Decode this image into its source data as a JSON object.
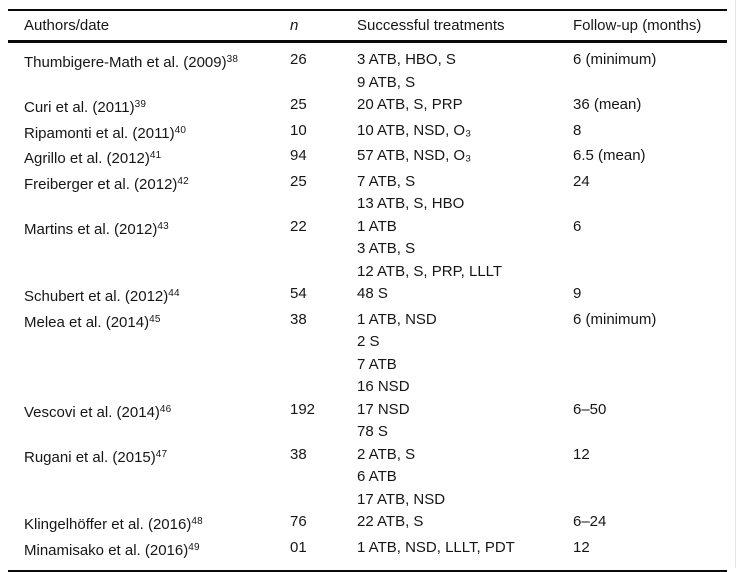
{
  "table": {
    "header": {
      "authors": "Authors/date",
      "n": "n",
      "treatments": "Successful treatments",
      "followup": "Follow-up (months)"
    },
    "rows": [
      {
        "authors": "Thumbigere-Math et al. (2009)",
        "ref": "38",
        "n": "26",
        "treatments": [
          "3 ATB, HBO, S",
          "9 ATB, S"
        ],
        "followup": "6 (minimum)"
      },
      {
        "authors": "Curi et al. (2011)",
        "ref": "39",
        "n": "25",
        "treatments": [
          "20 ATB, S, PRP"
        ],
        "followup": "36 (mean)"
      },
      {
        "authors": "Ripamonti et al. (2011)",
        "ref": "40",
        "n": "10",
        "treatments": [
          "10 ATB, NSD, O₃"
        ],
        "followup": "8"
      },
      {
        "authors": "Agrillo et al. (2012)",
        "ref": "41",
        "n": "94",
        "treatments": [
          "57 ATB, NSD, O₃"
        ],
        "followup": "6.5 (mean)"
      },
      {
        "authors": "Freiberger et al. (2012)",
        "ref": "42",
        "n": "25",
        "treatments": [
          "7 ATB, S",
          "13 ATB, S, HBO"
        ],
        "followup": "24"
      },
      {
        "authors": "Martins et al. (2012)",
        "ref": "43",
        "n": "22",
        "treatments": [
          "1 ATB",
          "3 ATB, S",
          "12 ATB, S, PRP, LLLT"
        ],
        "followup": "6"
      },
      {
        "authors": "Schubert et al. (2012)",
        "ref": "44",
        "n": "54",
        "treatments": [
          "48 S"
        ],
        "followup": "9"
      },
      {
        "authors": "Melea et al. (2014)",
        "ref": "45",
        "n": "38",
        "treatments": [
          "1 ATB, NSD",
          "2 S",
          "7 ATB",
          "16 NSD"
        ],
        "followup": "6 (minimum)"
      },
      {
        "authors": "Vescovi et al. (2014)",
        "ref": "46",
        "n": "192",
        "treatments": [
          "17 NSD",
          "78 S"
        ],
        "followup": "6–50"
      },
      {
        "authors": "Rugani et al. (2015)",
        "ref": "47",
        "n": "38",
        "treatments": [
          "2 ATB, S",
          "6 ATB",
          "17 ATB, NSD"
        ],
        "followup": "12"
      },
      {
        "authors": "Klingelhöffer et al. (2016)",
        "ref": "48",
        "n": "76",
        "treatments": [
          "22 ATB, S"
        ],
        "followup": "6–24"
      },
      {
        "authors": "Minamisako et al. (2016)",
        "ref": "49",
        "n": "01",
        "treatments": [
          "1 ATB, NSD, LLLT, PDT"
        ],
        "followup": "12"
      }
    ]
  }
}
